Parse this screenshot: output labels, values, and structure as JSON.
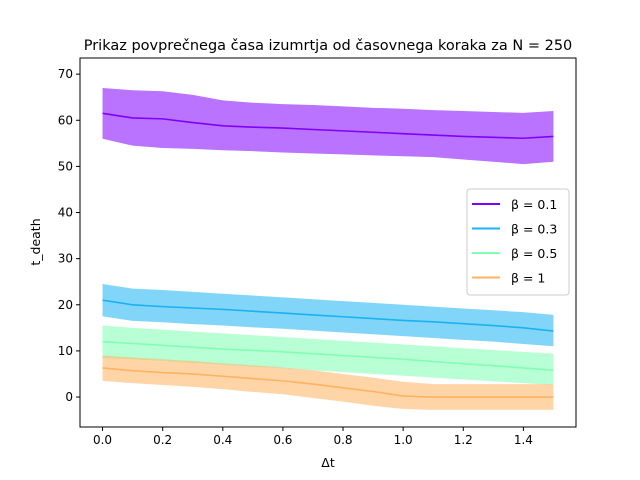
{
  "chart_data": {
    "type": "line",
    "title": "Prikaz povprečnega časa izumrtja od časovnega koraka za N = 250",
    "xlabel": "Δt",
    "ylabel": "t_death",
    "xlim": [
      -0.075,
      1.575
    ],
    "ylim": [
      -6.5,
      73.5
    ],
    "xticks": [
      0.0,
      0.2,
      0.4,
      0.6,
      0.8,
      1.0,
      1.2,
      1.4
    ],
    "xtick_labels": [
      "0.0",
      "0.2",
      "0.4",
      "0.6",
      "0.8",
      "1.0",
      "1.2",
      "1.4"
    ],
    "yticks": [
      0,
      10,
      20,
      30,
      40,
      50,
      60,
      70
    ],
    "ytick_labels": [
      "0",
      "10",
      "20",
      "30",
      "40",
      "50",
      "60",
      "70"
    ],
    "grid": false,
    "legend_placement": "center-right",
    "x": [
      0.0,
      0.1,
      0.2,
      0.3,
      0.4,
      0.5,
      0.6,
      0.7,
      0.8,
      0.9,
      1.0,
      1.1,
      1.2,
      1.3,
      1.4,
      1.5
    ],
    "series": [
      {
        "name": "β = 0.1",
        "color": "#8000ff",
        "mean": [
          61.5,
          60.5,
          60.3,
          59.5,
          58.8,
          58.5,
          58.3,
          58.0,
          57.7,
          57.4,
          57.1,
          56.8,
          56.5,
          56.3,
          56.1,
          56.5
        ],
        "lower": [
          56.0,
          54.5,
          54.0,
          53.8,
          53.5,
          53.3,
          53.0,
          52.8,
          52.6,
          52.4,
          52.2,
          52.0,
          51.5,
          51.0,
          50.5,
          51.0
        ],
        "upper": [
          67.0,
          66.5,
          66.3,
          65.5,
          64.3,
          63.8,
          63.5,
          63.3,
          63.0,
          62.7,
          62.5,
          62.2,
          62.0,
          61.8,
          61.6,
          62.0
        ]
      },
      {
        "name": "β = 0.3",
        "color": "#1ab2f2",
        "mean": [
          21.0,
          20.0,
          19.6,
          19.3,
          19.0,
          18.6,
          18.2,
          17.8,
          17.4,
          17.0,
          16.6,
          16.3,
          15.9,
          15.5,
          15.0,
          14.3
        ],
        "lower": [
          17.5,
          16.5,
          16.2,
          15.8,
          15.5,
          15.1,
          14.8,
          14.4,
          14.0,
          13.6,
          13.2,
          12.8,
          12.4,
          12.0,
          11.5,
          11.0
        ],
        "upper": [
          24.5,
          23.5,
          23.2,
          22.8,
          22.4,
          22.0,
          21.6,
          21.2,
          20.8,
          20.4,
          20.0,
          19.6,
          19.2,
          18.8,
          18.4,
          17.8
        ]
      },
      {
        "name": "β = 0.5",
        "color": "#80ffb4",
        "mean": [
          12.0,
          11.6,
          11.2,
          10.8,
          10.4,
          10.1,
          9.8,
          9.4,
          9.0,
          8.6,
          8.2,
          7.7,
          7.2,
          6.8,
          6.3,
          5.8
        ],
        "lower": [
          8.5,
          8.2,
          7.8,
          7.4,
          7.0,
          6.6,
          6.2,
          5.8,
          5.4,
          5.0,
          4.6,
          4.2,
          3.8,
          3.4,
          3.0,
          2.6
        ],
        "upper": [
          15.5,
          15.0,
          14.6,
          14.2,
          13.8,
          13.4,
          13.0,
          12.6,
          12.2,
          11.8,
          11.4,
          11.0,
          10.6,
          10.2,
          9.8,
          9.4
        ]
      },
      {
        "name": "β = 1",
        "color": "#ffb360",
        "mean": [
          6.3,
          5.7,
          5.3,
          5.0,
          4.5,
          4.0,
          3.5,
          2.8,
          2.0,
          1.2,
          0.2,
          0.0,
          0.0,
          0.0,
          0.0,
          0.0
        ],
        "lower": [
          3.5,
          3.0,
          2.6,
          2.2,
          1.7,
          1.1,
          0.6,
          -0.2,
          -1.0,
          -1.9,
          -2.6,
          -2.8,
          -2.8,
          -2.8,
          -2.8,
          -2.8
        ],
        "upper": [
          9.0,
          8.6,
          8.2,
          7.8,
          7.3,
          6.9,
          6.4,
          5.8,
          5.0,
          4.2,
          3.3,
          2.8,
          2.8,
          2.8,
          2.8,
          2.8
        ]
      }
    ]
  }
}
